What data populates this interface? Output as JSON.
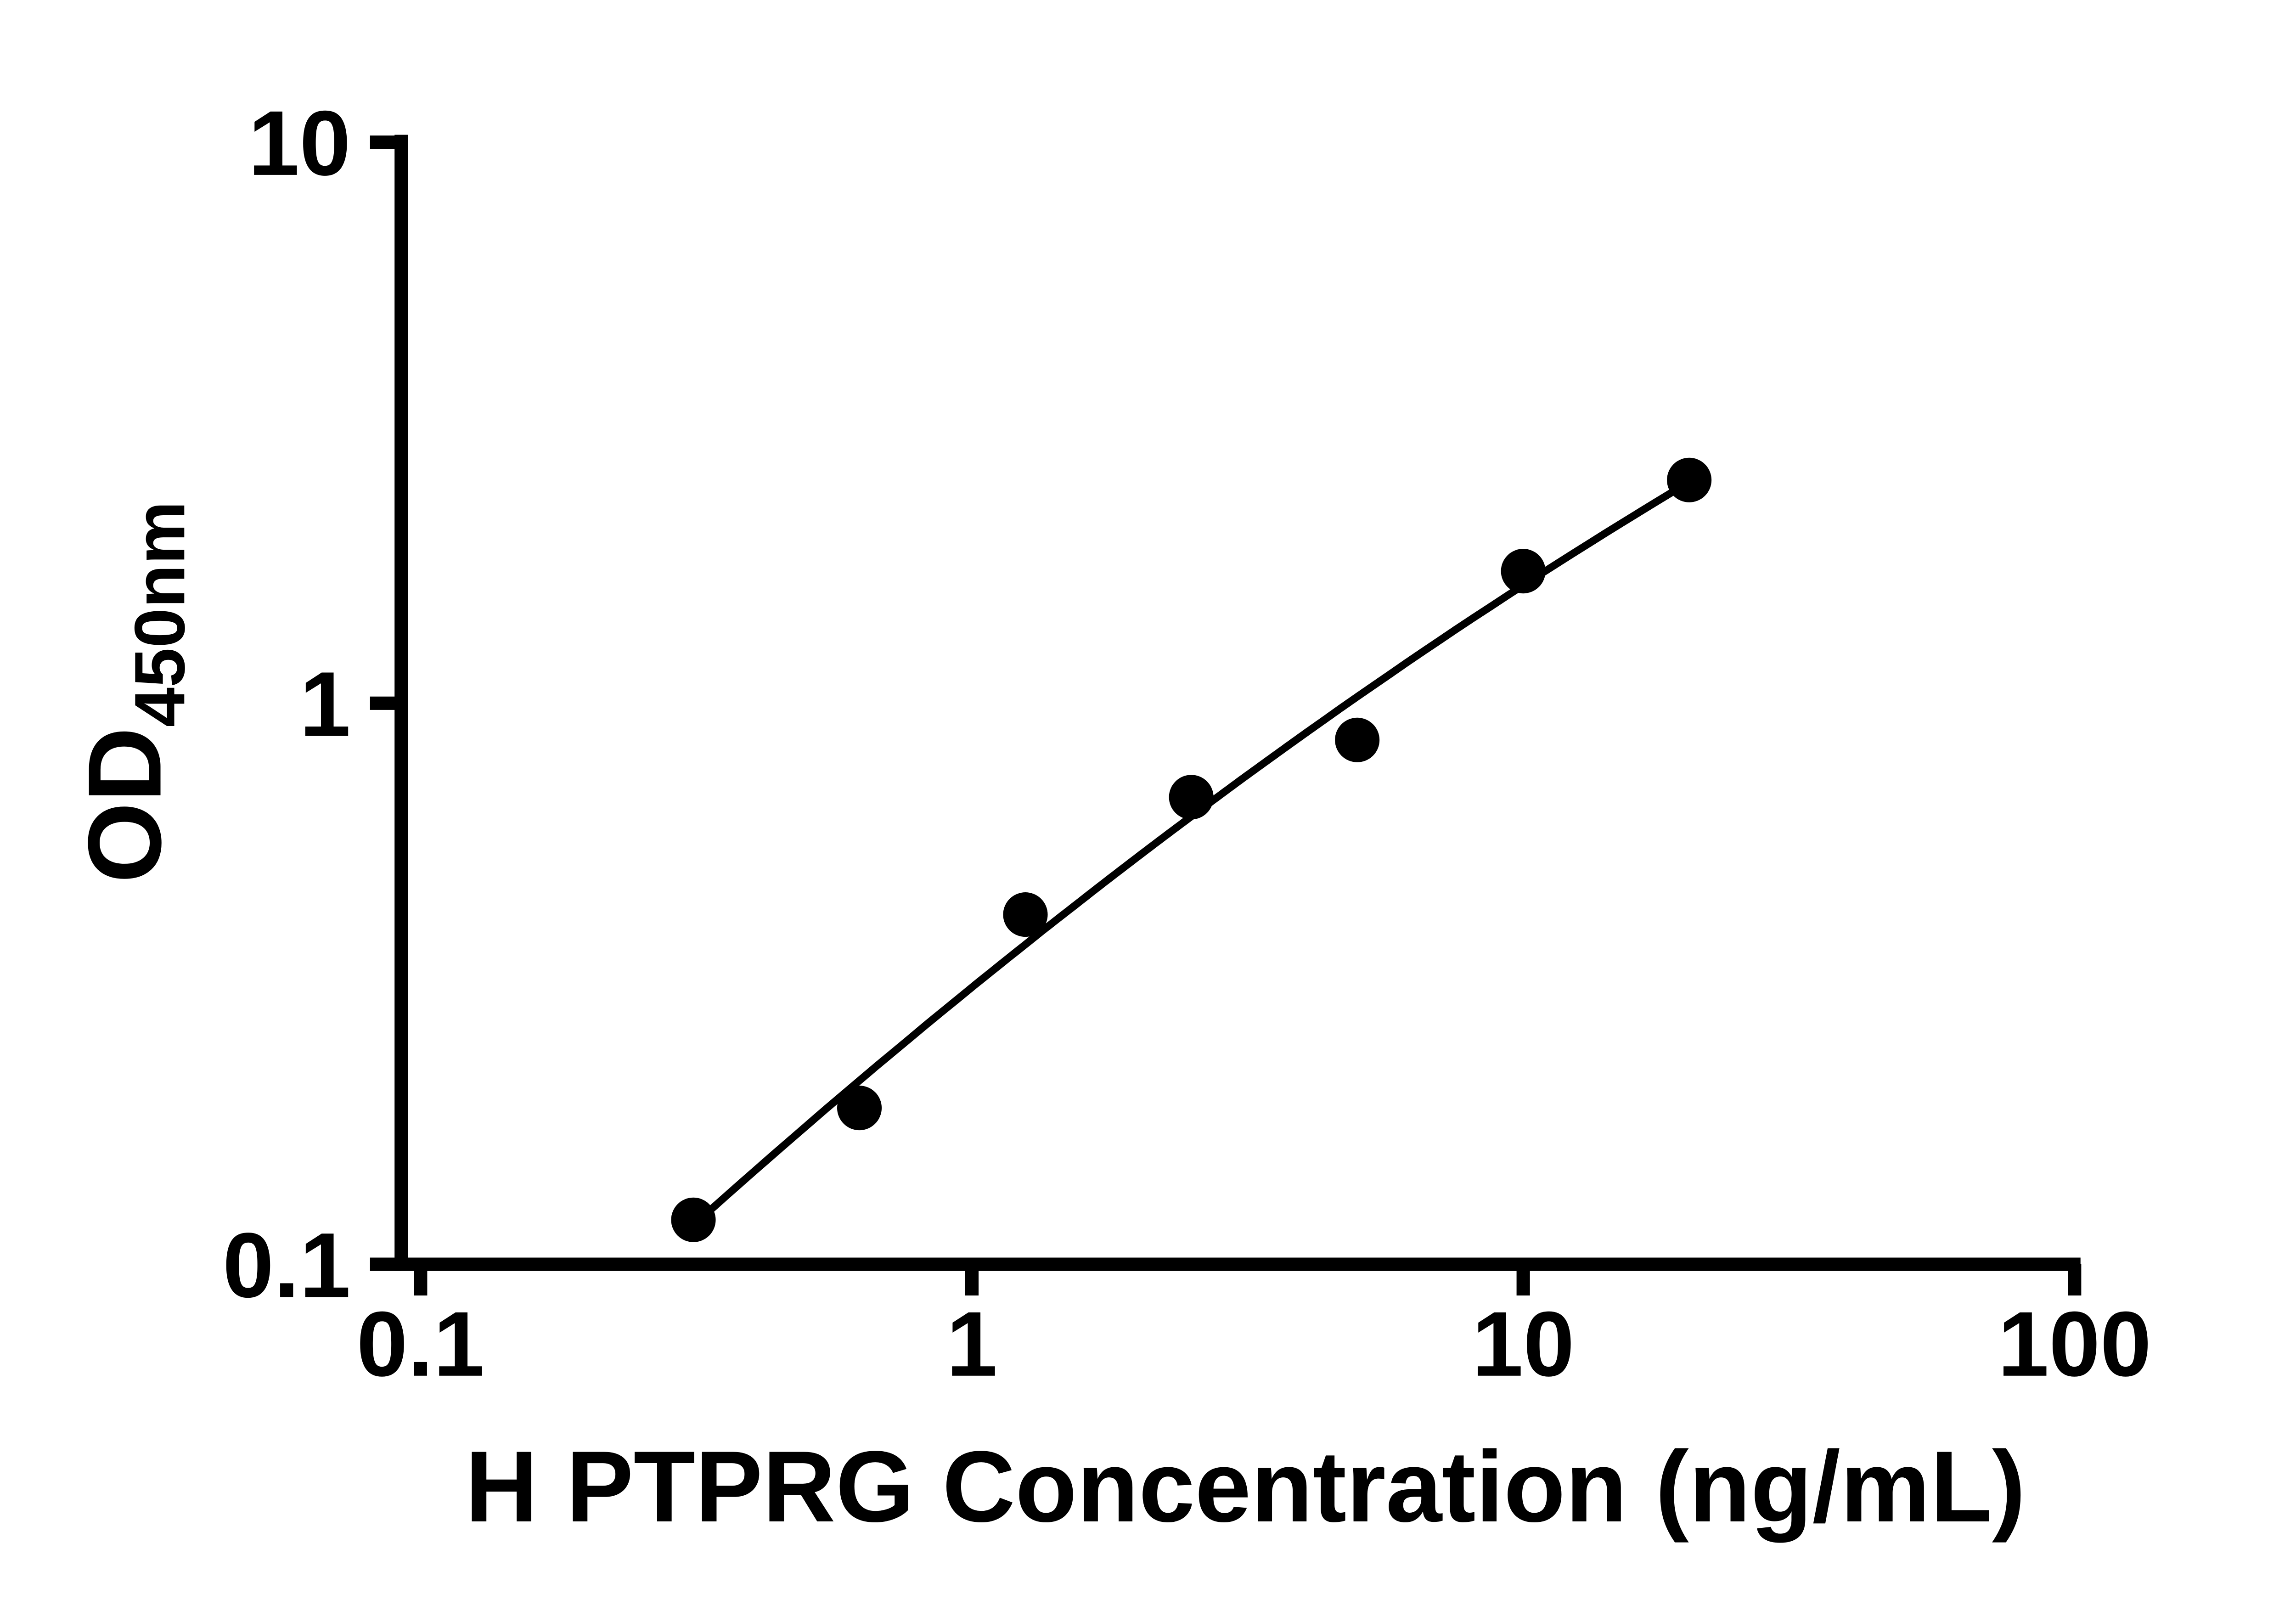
{
  "chart_data": {
    "type": "scatter",
    "xlabel": "H PTPRG Concentration (ng/mL)",
    "ylabel": "OD450nm",
    "ylabel_main": "OD",
    "ylabel_sub": "450nm",
    "x_scale": "log",
    "y_scale": "log",
    "xlim": [
      0.1,
      100
    ],
    "ylim": [
      0.1,
      10
    ],
    "x_ticks": [
      0.1,
      1,
      10,
      100
    ],
    "x_tick_labels": [
      "0.1",
      "1",
      "10",
      "100"
    ],
    "y_ticks": [
      0.1,
      1,
      10
    ],
    "y_tick_labels": [
      "0.1",
      "1",
      "10"
    ],
    "x": [
      0.3125,
      0.625,
      1.25,
      2.5,
      5,
      10,
      20
    ],
    "y": [
      0.12,
      0.19,
      0.42,
      0.68,
      0.86,
      1.72,
      2.5
    ],
    "has_fit_line": true,
    "fit_style": "smooth curve through points (quadratic fit in log-log space)",
    "grid": false,
    "legend": "none",
    "marker": {
      "shape": "circle",
      "color": "#000000",
      "radius_px": 15
    },
    "line_color": "#000000",
    "axis_color": "#000000",
    "background_color": "#ffffff"
  }
}
